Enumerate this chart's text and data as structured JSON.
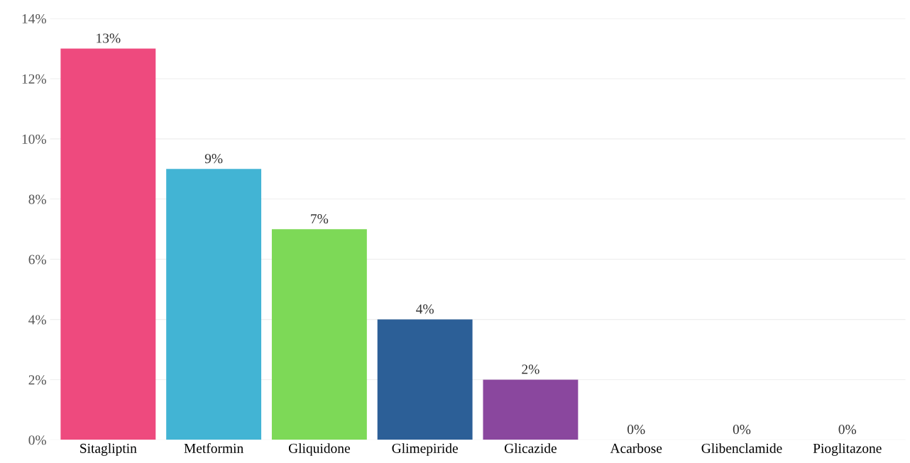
{
  "chart_data": {
    "type": "bar",
    "categories": [
      "Sitagliptin",
      "Metformin",
      "Gliquidone",
      "Glimepiride",
      "Glicazide",
      "Acarbose",
      "Glibenclamide",
      "Pioglitazone"
    ],
    "values": [
      13,
      9,
      7,
      4,
      2,
      0,
      0,
      0
    ],
    "colors": [
      "#ee4a7e",
      "#42b4d4",
      "#7dd957",
      "#2c5f97",
      "#8a479e",
      "#999999",
      "#999999",
      "#999999"
    ],
    "value_labels": [
      "13%",
      "9%",
      "7%",
      "4%",
      "2%",
      "0%",
      "0%",
      "0%"
    ],
    "ylim": [
      0,
      14
    ],
    "yticks": [
      {
        "value": 0,
        "label": "0%"
      },
      {
        "value": 2,
        "label": "2%"
      },
      {
        "value": 4,
        "label": "4%"
      },
      {
        "value": 6,
        "label": "6%"
      },
      {
        "value": 8,
        "label": "8%"
      },
      {
        "value": 10,
        "label": "10%"
      },
      {
        "value": 12,
        "label": "12%"
      },
      {
        "value": 14,
        "label": "14%"
      }
    ],
    "grid": "y"
  }
}
